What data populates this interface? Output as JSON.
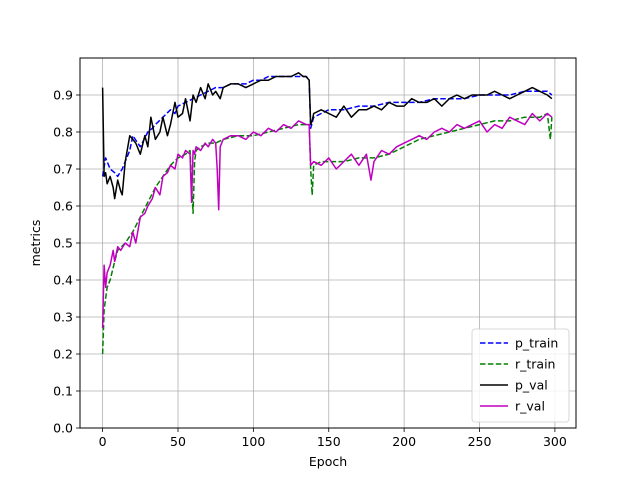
{
  "chart_data": {
    "type": "line",
    "title": "",
    "xlabel": "Epoch",
    "ylabel": "metrics",
    "xlim": [
      -15,
      314
    ],
    "ylim": [
      0,
      1.0
    ],
    "grid": true,
    "legend": "bottom-right",
    "x_ticks": [
      0,
      50,
      100,
      150,
      200,
      250,
      300
    ],
    "y_ticks": [
      0.0,
      0.1,
      0.2,
      0.3,
      0.4,
      0.5,
      0.6,
      0.7,
      0.8,
      0.9
    ],
    "x_tick_labels": [
      "0",
      "50",
      "100",
      "150",
      "200",
      "250",
      "300"
    ],
    "y_tick_labels": [
      "0.0",
      "0.1",
      "0.2",
      "0.3",
      "0.4",
      "0.5",
      "0.6",
      "0.7",
      "0.8",
      "0.9"
    ],
    "series": [
      {
        "name": "p_train",
        "color": "#0000ff",
        "dash": "dashed",
        "x": [
          0,
          2,
          5,
          8,
          10,
          13,
          15,
          18,
          20,
          25,
          30,
          33,
          35,
          40,
          45,
          48,
          50,
          55,
          60,
          65,
          70,
          75,
          80,
          85,
          90,
          95,
          100,
          105,
          110,
          115,
          120,
          125,
          130,
          135,
          137,
          138,
          140,
          145,
          150,
          160,
          170,
          180,
          190,
          200,
          210,
          220,
          230,
          240,
          250,
          260,
          270,
          280,
          290,
          295,
          298
        ],
        "y": [
          0.68,
          0.73,
          0.7,
          0.69,
          0.68,
          0.7,
          0.72,
          0.75,
          0.79,
          0.76,
          0.8,
          0.81,
          0.82,
          0.84,
          0.86,
          0.85,
          0.87,
          0.88,
          0.89,
          0.9,
          0.91,
          0.92,
          0.92,
          0.93,
          0.93,
          0.93,
          0.94,
          0.94,
          0.95,
          0.95,
          0.95,
          0.95,
          0.95,
          0.95,
          0.94,
          0.81,
          0.84,
          0.85,
          0.86,
          0.86,
          0.87,
          0.87,
          0.88,
          0.88,
          0.88,
          0.89,
          0.89,
          0.89,
          0.9,
          0.9,
          0.9,
          0.91,
          0.91,
          0.91,
          0.9
        ]
      },
      {
        "name": "r_train",
        "color": "#008000",
        "dash": "dashed",
        "x": [
          0,
          1,
          3,
          5,
          8,
          10,
          15,
          20,
          25,
          30,
          35,
          40,
          45,
          50,
          55,
          58,
          60,
          61,
          62,
          65,
          70,
          75,
          80,
          90,
          100,
          110,
          120,
          130,
          135,
          137,
          138,
          139,
          140,
          145,
          150,
          160,
          170,
          180,
          190,
          200,
          210,
          220,
          230,
          240,
          250,
          260,
          270,
          280,
          290,
          295,
          297,
          298
        ],
        "y": [
          0.2,
          0.32,
          0.38,
          0.4,
          0.45,
          0.48,
          0.5,
          0.53,
          0.57,
          0.61,
          0.65,
          0.68,
          0.71,
          0.73,
          0.74,
          0.75,
          0.58,
          0.72,
          0.75,
          0.76,
          0.77,
          0.77,
          0.78,
          0.79,
          0.79,
          0.8,
          0.81,
          0.82,
          0.82,
          0.82,
          0.7,
          0.63,
          0.71,
          0.72,
          0.72,
          0.72,
          0.73,
          0.73,
          0.74,
          0.76,
          0.78,
          0.79,
          0.8,
          0.81,
          0.82,
          0.83,
          0.83,
          0.84,
          0.84,
          0.85,
          0.78,
          0.84
        ]
      },
      {
        "name": "p_val",
        "color": "#000000",
        "dash": "solid",
        "x": [
          0,
          1,
          2,
          3,
          5,
          7,
          8,
          10,
          12,
          13,
          15,
          18,
          20,
          22,
          25,
          28,
          30,
          32,
          35,
          38,
          40,
          43,
          45,
          48,
          50,
          53,
          55,
          58,
          60,
          62,
          65,
          68,
          70,
          73,
          75,
          78,
          80,
          85,
          90,
          95,
          100,
          105,
          110,
          115,
          120,
          125,
          130,
          133,
          135,
          137,
          138,
          139,
          140,
          145,
          150,
          155,
          160,
          165,
          170,
          175,
          180,
          185,
          190,
          195,
          200,
          205,
          210,
          215,
          220,
          225,
          230,
          235,
          240,
          245,
          250,
          255,
          260,
          265,
          270,
          275,
          280,
          285,
          290,
          295,
          298
        ],
        "y": [
          0.92,
          0.68,
          0.69,
          0.66,
          0.68,
          0.65,
          0.62,
          0.67,
          0.64,
          0.63,
          0.72,
          0.79,
          0.78,
          0.77,
          0.74,
          0.79,
          0.76,
          0.84,
          0.78,
          0.8,
          0.84,
          0.79,
          0.82,
          0.88,
          0.84,
          0.85,
          0.89,
          0.83,
          0.9,
          0.88,
          0.92,
          0.89,
          0.93,
          0.9,
          0.91,
          0.89,
          0.92,
          0.93,
          0.93,
          0.92,
          0.93,
          0.94,
          0.94,
          0.95,
          0.95,
          0.95,
          0.96,
          0.95,
          0.95,
          0.94,
          0.82,
          0.83,
          0.85,
          0.86,
          0.85,
          0.84,
          0.87,
          0.84,
          0.86,
          0.86,
          0.87,
          0.86,
          0.88,
          0.87,
          0.87,
          0.89,
          0.88,
          0.88,
          0.89,
          0.87,
          0.89,
          0.9,
          0.89,
          0.9,
          0.9,
          0.9,
          0.91,
          0.9,
          0.89,
          0.9,
          0.91,
          0.92,
          0.91,
          0.9,
          0.89
        ]
      },
      {
        "name": "r_val",
        "color": "#bf00bf",
        "dash": "solid",
        "x": [
          0,
          1,
          2,
          3,
          5,
          7,
          8,
          10,
          12,
          15,
          18,
          20,
          22,
          25,
          28,
          30,
          33,
          35,
          38,
          40,
          43,
          45,
          48,
          50,
          53,
          55,
          58,
          59,
          60,
          61,
          62,
          65,
          68,
          70,
          73,
          75,
          76,
          77,
          78,
          80,
          85,
          90,
          95,
          100,
          105,
          110,
          115,
          120,
          125,
          130,
          135,
          137,
          138,
          140,
          145,
          150,
          155,
          160,
          165,
          170,
          175,
          178,
          180,
          185,
          190,
          195,
          200,
          205,
          210,
          215,
          220,
          225,
          230,
          235,
          240,
          245,
          250,
          255,
          260,
          265,
          270,
          275,
          280,
          285,
          290,
          295,
          298
        ],
        "y": [
          0.27,
          0.44,
          0.38,
          0.42,
          0.44,
          0.48,
          0.45,
          0.49,
          0.48,
          0.5,
          0.49,
          0.53,
          0.5,
          0.57,
          0.58,
          0.6,
          0.62,
          0.65,
          0.63,
          0.68,
          0.69,
          0.71,
          0.7,
          0.74,
          0.73,
          0.75,
          0.74,
          0.61,
          0.75,
          0.74,
          0.76,
          0.75,
          0.77,
          0.76,
          0.78,
          0.77,
          0.7,
          0.59,
          0.76,
          0.78,
          0.79,
          0.79,
          0.78,
          0.8,
          0.79,
          0.81,
          0.8,
          0.82,
          0.81,
          0.83,
          0.82,
          0.82,
          0.71,
          0.72,
          0.71,
          0.73,
          0.7,
          0.72,
          0.74,
          0.71,
          0.74,
          0.67,
          0.72,
          0.75,
          0.74,
          0.76,
          0.77,
          0.78,
          0.79,
          0.78,
          0.8,
          0.81,
          0.8,
          0.82,
          0.81,
          0.82,
          0.83,
          0.8,
          0.82,
          0.81,
          0.84,
          0.83,
          0.82,
          0.85,
          0.83,
          0.85,
          0.84
        ]
      }
    ]
  }
}
